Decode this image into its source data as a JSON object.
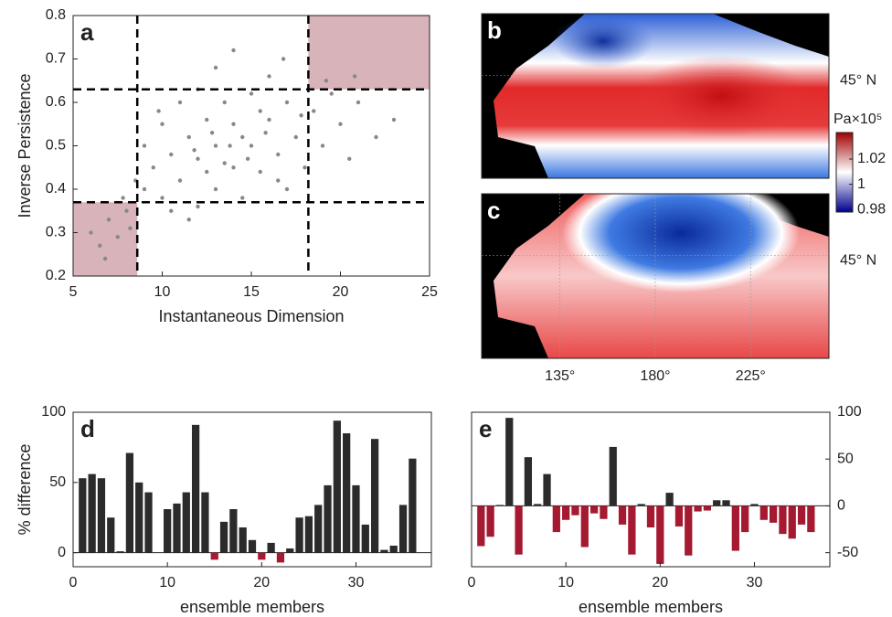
{
  "chart_data": [
    {
      "type": "scatter",
      "panel": "a",
      "xlabel": "Instantaneous Dimension",
      "ylabel": "Inverse Persistence",
      "color": "#888888",
      "shade_color": "#d9b3ba",
      "xlim": [
        5,
        25
      ],
      "ylim": [
        0.2,
        0.8
      ],
      "xticks": [
        5,
        10,
        15,
        20,
        25
      ],
      "yticks": [
        0.2,
        0.3,
        0.4,
        0.5,
        0.6,
        0.7,
        0.8
      ],
      "thresholds_x": [
        8.6,
        18.2
      ],
      "thresholds_y": [
        0.37,
        0.63
      ],
      "x": [
        6,
        6.5,
        7,
        7.5,
        8,
        8.2,
        7.8,
        9,
        9.5,
        9,
        10,
        10,
        10.5,
        11,
        11,
        11.5,
        12,
        12,
        12,
        12.5,
        13,
        13,
        13,
        13.5,
        14,
        14,
        14,
        14.5,
        15,
        15,
        15.5,
        16,
        16,
        16.5,
        17,
        17,
        17.5,
        18,
        18.5,
        19,
        19.5,
        20,
        20.5,
        21,
        22,
        10.5,
        11.5,
        12.5,
        13.5,
        14.5,
        15.5,
        16.5,
        9.8,
        12.8,
        13.8,
        11.8,
        14.8,
        15.8,
        17.8,
        19.2,
        20.8,
        6.8,
        8.5,
        23,
        16.8
      ],
      "values": [
        0.3,
        0.27,
        0.33,
        0.29,
        0.35,
        0.31,
        0.38,
        0.4,
        0.45,
        0.5,
        0.38,
        0.55,
        0.48,
        0.42,
        0.6,
        0.52,
        0.36,
        0.47,
        0.63,
        0.56,
        0.4,
        0.5,
        0.68,
        0.6,
        0.45,
        0.55,
        0.72,
        0.38,
        0.5,
        0.62,
        0.44,
        0.56,
        0.66,
        0.48,
        0.4,
        0.6,
        0.52,
        0.45,
        0.58,
        0.5,
        0.62,
        0.55,
        0.47,
        0.6,
        0.52,
        0.35,
        0.33,
        0.44,
        0.46,
        0.52,
        0.58,
        0.42,
        0.58,
        0.53,
        0.5,
        0.49,
        0.47,
        0.53,
        0.57,
        0.65,
        0.66,
        0.24,
        0.42,
        0.56,
        0.7
      ]
    },
    {
      "type": "map",
      "panel": "b",
      "variant": "b",
      "xlim": [
        98,
        262
      ],
      "ylim": [
        20,
        60
      ],
      "yticks": [
        {
          "value": 45,
          "label": "45° N"
        }
      ],
      "colorbar": {
        "label": "Pa×10⁵",
        "lim": [
          0.978,
          1.041
        ],
        "ticks": [
          0.98,
          1,
          1.02
        ]
      }
    },
    {
      "type": "map",
      "panel": "c",
      "variant": "c",
      "xlim": [
        98,
        262
      ],
      "ylim": [
        20,
        60
      ],
      "xticks": [
        {
          "value": 135,
          "label": "135°"
        },
        {
          "value": 180,
          "label": "180°"
        },
        {
          "value": 225,
          "label": "225°"
        }
      ],
      "yticks": [
        {
          "value": 45,
          "label": "45° N"
        }
      ]
    },
    {
      "type": "bar",
      "panel": "d",
      "xlabel": "ensemble members",
      "ylabel": "% difference",
      "yaxis_side": "left",
      "positive_color": "#2b2b2b",
      "negative_color": "#a51931",
      "xlim": [
        0,
        38
      ],
      "ylim": [
        -10,
        100
      ],
      "xticks": [
        0,
        10,
        20,
        30
      ],
      "yticks": [
        0,
        50,
        100
      ],
      "x": [
        1,
        2,
        3,
        4,
        5,
        6,
        7,
        8,
        9,
        10,
        11,
        12,
        13,
        14,
        15,
        16,
        17,
        18,
        19,
        20,
        21,
        22,
        23,
        24,
        25,
        26,
        27,
        28,
        29,
        30,
        31,
        32,
        33,
        34,
        35,
        36
      ],
      "values": [
        53,
        56,
        53,
        25,
        1,
        71,
        50,
        43,
        0,
        31,
        35,
        43,
        91,
        43,
        -5,
        22,
        31,
        18,
        9,
        -5,
        7,
        -7,
        3,
        25,
        26,
        34,
        48,
        94,
        85,
        48,
        20,
        81,
        2,
        5,
        34,
        67
      ]
    },
    {
      "type": "bar",
      "panel": "e",
      "xlabel": "ensemble members",
      "yaxis_side": "right",
      "positive_color": "#2b2b2b",
      "negative_color": "#a51931",
      "xlim": [
        0,
        38
      ],
      "ylim": [
        -65,
        100
      ],
      "xticks": [
        0,
        10,
        20,
        30
      ],
      "yticks": [
        -50,
        0,
        50,
        100
      ],
      "x": [
        1,
        2,
        3,
        4,
        5,
        6,
        7,
        8,
        9,
        10,
        11,
        12,
        13,
        14,
        15,
        16,
        17,
        18,
        19,
        20,
        21,
        22,
        23,
        24,
        25,
        26,
        27,
        28,
        29,
        30,
        31,
        32,
        33,
        34,
        35,
        36
      ],
      "values": [
        -43,
        -33,
        1,
        94,
        -52,
        52,
        2,
        34,
        -28,
        -15,
        -10,
        -44,
        -8,
        -14,
        63,
        -20,
        -52,
        2,
        -23,
        -62,
        14,
        -22,
        -53,
        -6,
        -5,
        6,
        6,
        -48,
        -28,
        2,
        -15,
        -18,
        -30,
        -35,
        -20,
        -28
      ]
    }
  ]
}
